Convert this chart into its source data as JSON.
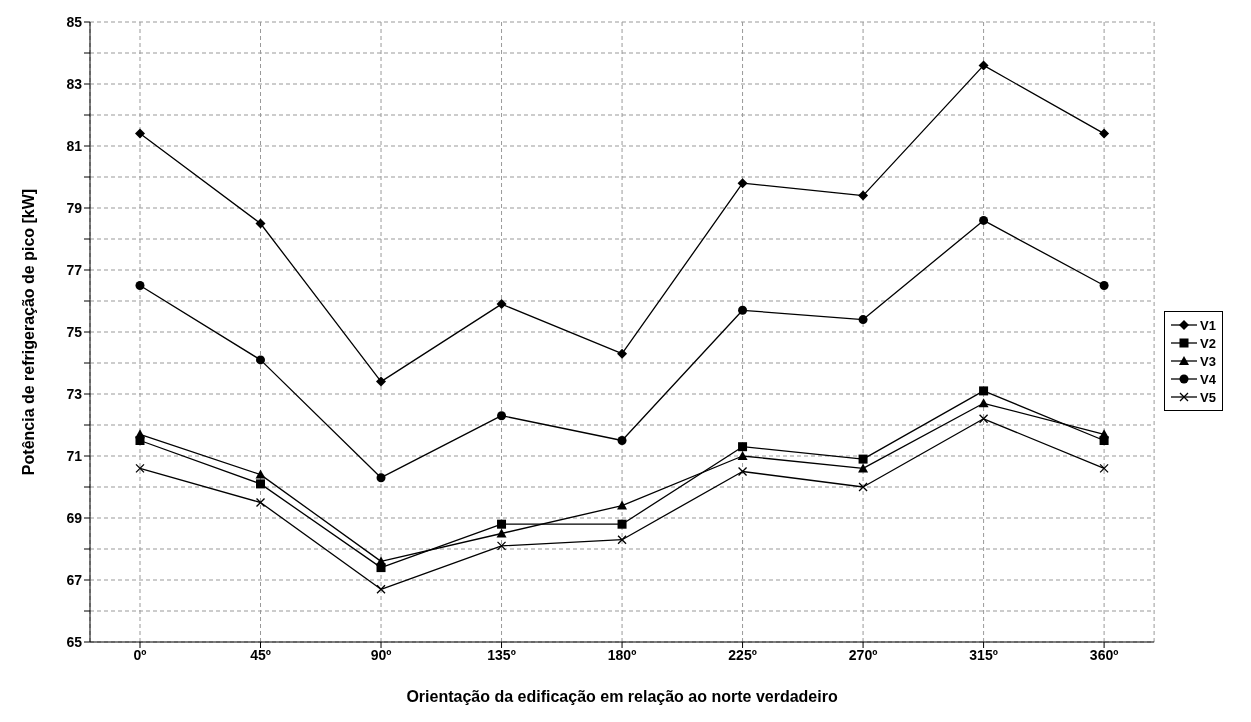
{
  "chart_data": {
    "type": "line",
    "xlabel": "Orientação da edificação em relação ao norte verdadeiro",
    "ylabel": "Potência de refrigeração de pico [kW]",
    "categories": [
      "0º",
      "45º",
      "90º",
      "135º",
      "180º",
      "225º",
      "270º",
      "315º",
      "360º"
    ],
    "ylim": [
      65,
      85
    ],
    "yticks": [
      65,
      {
        "value": 66,
        "label": null
      },
      67,
      {
        "value": 68,
        "label": null
      },
      69,
      {
        "value": 70,
        "label": null
      },
      71,
      {
        "value": 72,
        "label": null
      },
      73,
      {
        "value": 74,
        "label": null
      },
      75,
      {
        "value": 76,
        "label": null
      },
      77,
      {
        "value": 78,
        "label": null
      },
      79,
      {
        "value": 80,
        "label": null
      },
      81,
      {
        "value": 82,
        "label": null
      },
      83,
      {
        "value": 84,
        "label": null
      },
      85
    ],
    "grid": true,
    "legend": "right",
    "line_style": "solid",
    "series": [
      {
        "name": "V1",
        "color": "#000000",
        "marker": "diamond",
        "values": [
          81.4,
          78.5,
          73.4,
          75.9,
          74.3,
          79.8,
          79.4,
          83.6,
          81.4
        ]
      },
      {
        "name": "V2",
        "color": "#000000",
        "marker": "square",
        "values": [
          71.5,
          70.1,
          67.4,
          68.8,
          68.8,
          71.3,
          70.9,
          73.1,
          71.5
        ]
      },
      {
        "name": "V3",
        "color": "#000000",
        "marker": "triangle",
        "values": [
          71.7,
          70.4,
          67.6,
          68.5,
          69.4,
          71.0,
          70.6,
          72.7,
          71.7
        ]
      },
      {
        "name": "V4",
        "color": "#000000",
        "marker": "circle",
        "values": [
          76.5,
          74.1,
          70.3,
          72.3,
          71.5,
          75.7,
          75.4,
          78.6,
          76.5
        ]
      },
      {
        "name": "V5",
        "color": "#000000",
        "marker": "cross",
        "values": [
          70.6,
          69.5,
          66.7,
          68.1,
          68.3,
          70.5,
          70.0,
          72.2,
          70.6
        ]
      }
    ]
  }
}
